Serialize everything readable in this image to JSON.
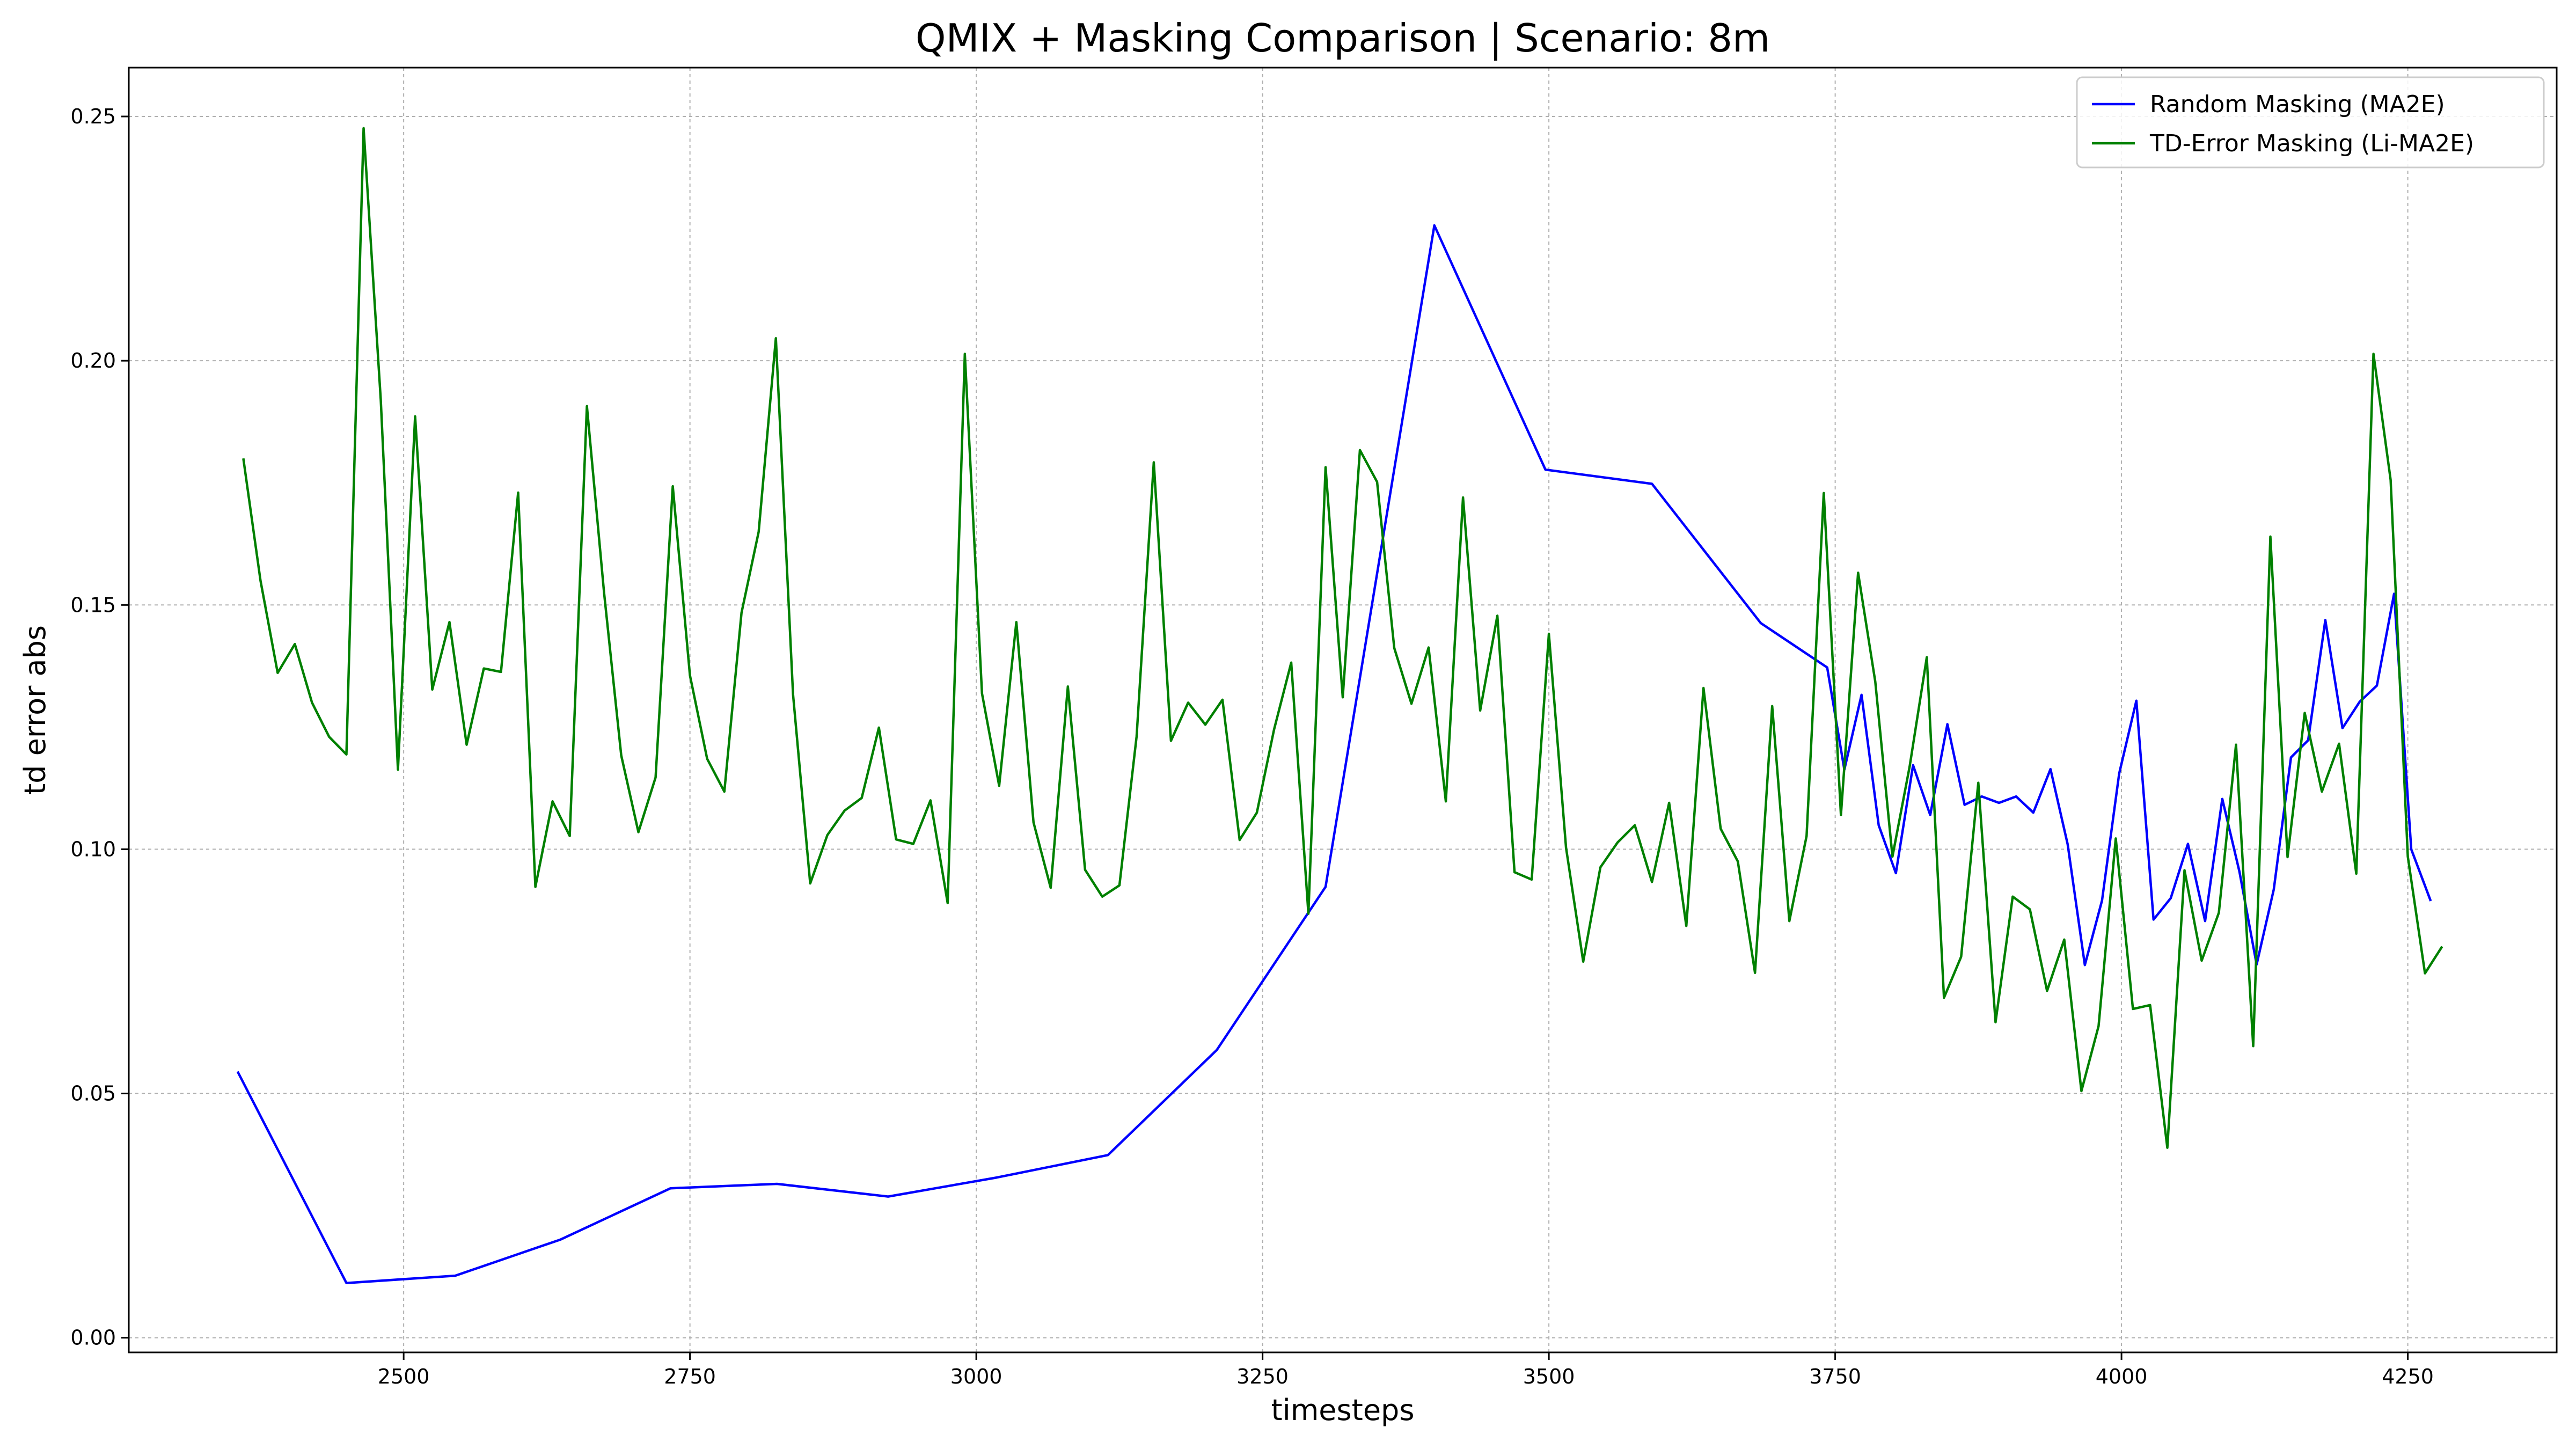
{
  "chart_data": {
    "type": "line",
    "title": "QMIX + Masking Comparison | Scenario: 8m",
    "xlabel": "timesteps",
    "ylabel": "td error abs",
    "xlim": [
      2260,
      4380
    ],
    "ylim": [
      -0.003,
      0.26
    ],
    "xticks": [
      2500,
      2750,
      3000,
      3250,
      3500,
      3750,
      4000,
      4250
    ],
    "xtick_labels": [
      "2500",
      "2750",
      "3000",
      "3250",
      "3500",
      "3750",
      "4000",
      "4250"
    ],
    "yticks": [
      0.0,
      0.05,
      0.1,
      0.15,
      0.2,
      0.25
    ],
    "ytick_labels": [
      "0.00",
      "0.05",
      "0.10",
      "0.15",
      "0.20",
      "0.25"
    ],
    "grid": true,
    "legend_position": "top-right",
    "series": [
      {
        "name": "Random Masking (MA2E)",
        "color": "#0000ff",
        "x": [
          2355,
          2450,
          2545,
          2637,
          2733,
          2826,
          2923,
          3018,
          3115,
          3210,
          3305,
          3400,
          3497,
          3590,
          3685,
          3743,
          3758,
          3773,
          3788,
          3803,
          3818,
          3833,
          3848,
          3863,
          3878,
          3893,
          3908,
          3923,
          3938,
          3953,
          3968,
          3983,
          3998,
          4013,
          4028,
          4043,
          4058,
          4073,
          4088,
          4103,
          4118,
          4133,
          4148,
          4163,
          4178,
          4193,
          4208,
          4223,
          4238,
          4253,
          4270
        ],
        "y": [
          0.0545,
          0.0112,
          0.0127,
          0.0201,
          0.0306,
          0.0315,
          0.0289,
          0.0328,
          0.0374,
          0.0589,
          0.0923,
          0.2277,
          0.1777,
          0.1748,
          0.1463,
          0.1372,
          0.1163,
          0.1316,
          0.1049,
          0.0951,
          0.1172,
          0.107,
          0.1256,
          0.1091,
          0.1108,
          0.1095,
          0.1108,
          0.1075,
          0.1164,
          0.101,
          0.0763,
          0.0895,
          0.1155,
          0.1304,
          0.0856,
          0.09,
          0.1011,
          0.0853,
          0.1103,
          0.0954,
          0.0764,
          0.0918,
          0.1188,
          0.1223,
          0.1469,
          0.1248,
          0.1302,
          0.1335,
          0.1523,
          0.1,
          0.0894
        ]
      },
      {
        "name": "TD-Error Masking (Li-MA2E)",
        "color": "#008000",
        "x": [
          2360,
          2375,
          2390,
          2405,
          2420,
          2435,
          2450,
          2465,
          2480,
          2495,
          2510,
          2525,
          2540,
          2555,
          2570,
          2585,
          2600,
          2615,
          2630,
          2645,
          2660,
          2675,
          2690,
          2705,
          2720,
          2735,
          2750,
          2765,
          2780,
          2795,
          2810,
          2825,
          2840,
          2855,
          2870,
          2885,
          2900,
          2915,
          2930,
          2945,
          2960,
          2975,
          2990,
          3005,
          3020,
          3035,
          3050,
          3065,
          3080,
          3095,
          3110,
          3125,
          3140,
          3155,
          3170,
          3185,
          3200,
          3215,
          3230,
          3245,
          3260,
          3275,
          3290,
          3305,
          3320,
          3335,
          3350,
          3365,
          3380,
          3395,
          3410,
          3425,
          3440,
          3455,
          3470,
          3485,
          3500,
          3515,
          3530,
          3545,
          3560,
          3575,
          3590,
          3605,
          3620,
          3635,
          3650,
          3665,
          3680,
          3695,
          3710,
          3725,
          3740,
          3755,
          3770,
          3785,
          3800,
          3815,
          3830,
          3845,
          3860,
          3875,
          3890,
          3905,
          3920,
          3935,
          3950,
          3965,
          3980,
          3995,
          4010,
          4025,
          4040,
          4055,
          4070,
          4085,
          4100,
          4115,
          4130,
          4145,
          4160,
          4175,
          4190,
          4205,
          4220,
          4235,
          4250,
          4265,
          4280
        ],
        "y": [
          0.18,
          0.155,
          0.1361,
          0.142,
          0.13,
          0.123,
          0.1194,
          0.2476,
          0.192,
          0.1163,
          0.1886,
          0.1327,
          0.1465,
          0.1214,
          0.137,
          0.1363,
          0.173,
          0.0923,
          0.1098,
          0.1027,
          0.1907,
          0.1525,
          0.1192,
          0.1035,
          0.1147,
          0.1743,
          0.1356,
          0.1185,
          0.1118,
          0.1484,
          0.165,
          0.2046,
          0.1317,
          0.093,
          0.1029,
          0.1079,
          0.1105,
          0.1249,
          0.102,
          0.1011,
          0.11,
          0.089,
          0.2014,
          0.1319,
          0.113,
          0.1465,
          0.1055,
          0.0921,
          0.1333,
          0.0958,
          0.0903,
          0.0926,
          0.1231,
          0.1792,
          0.1222,
          0.13,
          0.1255,
          0.1306,
          0.1019,
          0.1075,
          0.1245,
          0.1382,
          0.0868,
          0.1782,
          0.1311,
          0.1817,
          0.1752,
          0.1412,
          0.1298,
          0.1413,
          0.1098,
          0.172,
          0.1284,
          0.1478,
          0.0953,
          0.0938,
          0.1441,
          0.1003,
          0.077,
          0.0963,
          0.1014,
          0.1049,
          0.0933,
          0.1095,
          0.0843,
          0.133,
          0.1042,
          0.0975,
          0.0747,
          0.1293,
          0.0853,
          0.1027,
          0.1729,
          0.107,
          0.1566,
          0.1343,
          0.0985,
          0.1169,
          0.1393,
          0.0696,
          0.078,
          0.1136,
          0.0646,
          0.0903,
          0.0877,
          0.071,
          0.0815,
          0.0505,
          0.0638,
          0.1022,
          0.0673,
          0.0681,
          0.0389,
          0.0957,
          0.0772,
          0.087,
          0.1214,
          0.0597,
          0.164,
          0.0984,
          0.1279,
          0.1118,
          0.1216,
          0.095,
          0.2014,
          0.1756,
          0.0985,
          0.0746,
          0.0801
        ]
      }
    ]
  }
}
